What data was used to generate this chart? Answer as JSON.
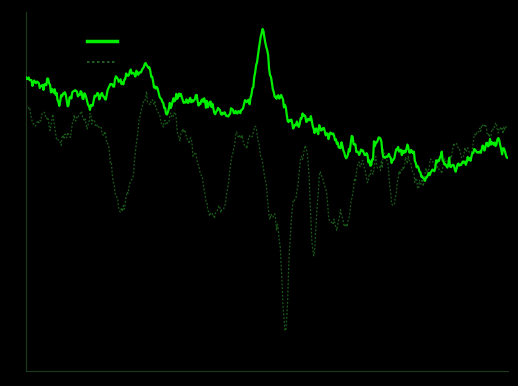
{
  "background_color": "#000000",
  "axes_facecolor": "#000000",
  "solid_line_color": "#00ee00",
  "dotted_line_color": "#1a5c1a",
  "legend_solid_color": "#00ee00",
  "legend_dotted_color": "#2a6e2a",
  "axes_edge_color": "#1a3a1a",
  "figsize": [
    5.18,
    3.86
  ],
  "dpi": 100,
  "ylim_min": -0.55,
  "ylim_max": 0.75
}
